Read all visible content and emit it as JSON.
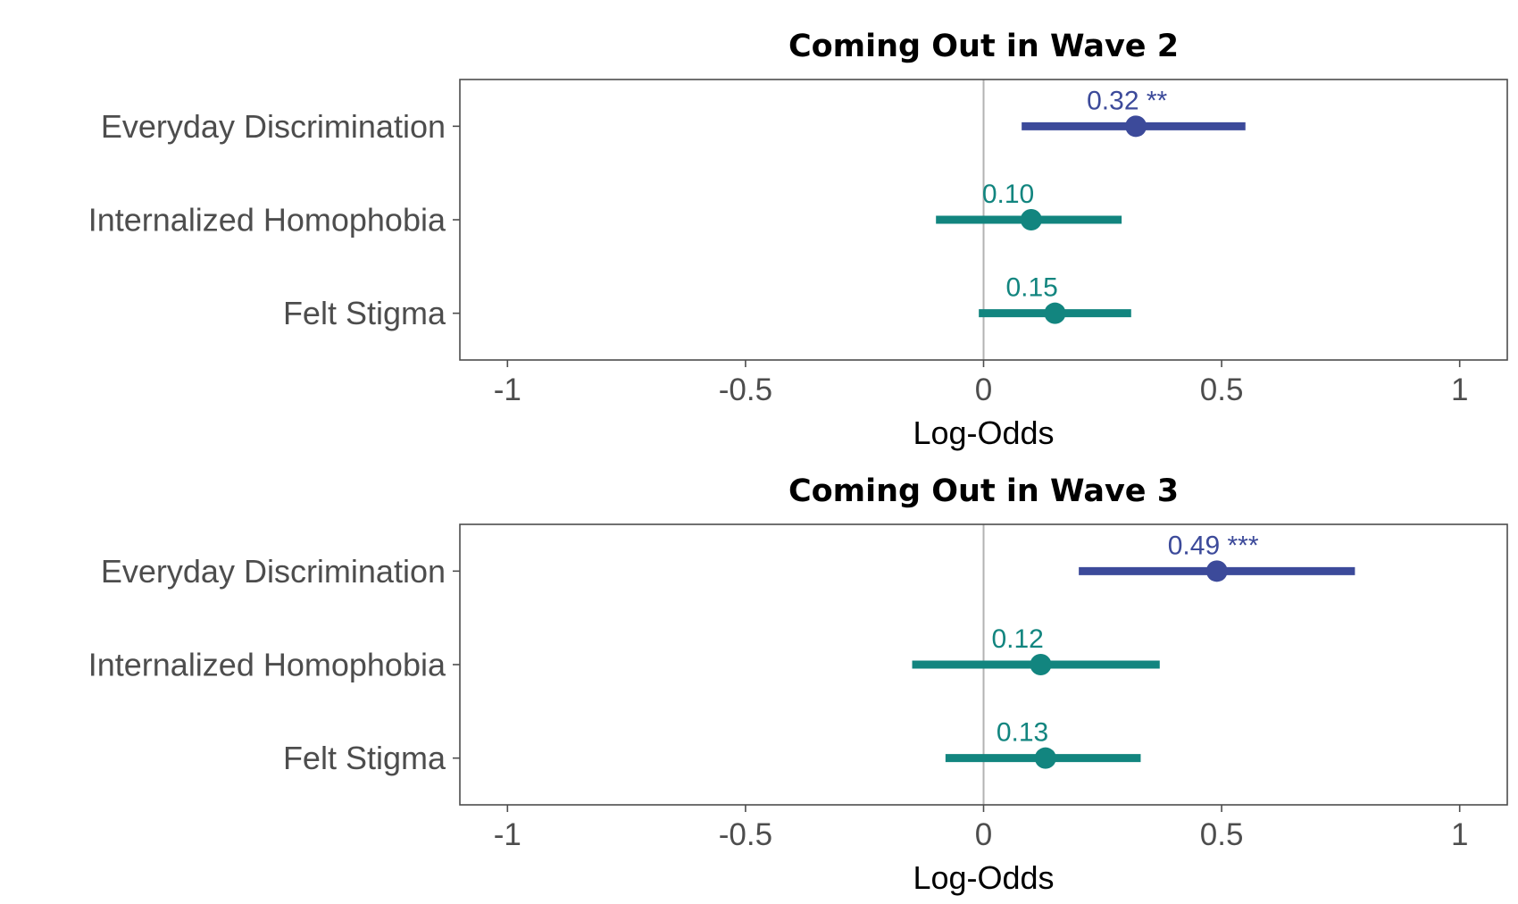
{
  "chart_data": [
    {
      "type": "scatter",
      "title": "Coming Out in Wave 2",
      "xlabel": "Log-Odds",
      "xlim": [
        -1.1,
        1.1
      ],
      "x_ticks": [
        -1,
        -0.5,
        0,
        0.5,
        1
      ],
      "x_tick_labels": [
        "-1",
        "-0.5",
        "0",
        "0.5",
        "1"
      ],
      "reference_line_x": 0,
      "grid": false,
      "categories": [
        "Everyday Discrimination",
        "Internalized Homophobia",
        "Felt Stigma"
      ],
      "estimates": [
        {
          "category": "Everyday Discrimination",
          "value": 0.32,
          "ci": [
            0.08,
            0.55
          ],
          "label": "0.32 **",
          "color": "#3c4a9a"
        },
        {
          "category": "Internalized Homophobia",
          "value": 0.1,
          "ci": [
            -0.1,
            0.29
          ],
          "label": "0.10",
          "color": "#12857f"
        },
        {
          "category": "Felt Stigma",
          "value": 0.15,
          "ci": [
            -0.01,
            0.31
          ],
          "label": "0.15",
          "color": "#12857f"
        }
      ]
    },
    {
      "type": "scatter",
      "title": "Coming Out in Wave 3",
      "xlabel": "Log-Odds",
      "xlim": [
        -1.1,
        1.1
      ],
      "x_ticks": [
        -1,
        -0.5,
        0,
        0.5,
        1
      ],
      "x_tick_labels": [
        "-1",
        "-0.5",
        "0",
        "0.5",
        "1"
      ],
      "reference_line_x": 0,
      "grid": false,
      "categories": [
        "Everyday Discrimination",
        "Internalized Homophobia",
        "Felt Stigma"
      ],
      "estimates": [
        {
          "category": "Everyday Discrimination",
          "value": 0.49,
          "ci": [
            0.2,
            0.78
          ],
          "label": "0.49 ***",
          "color": "#3c4a9a"
        },
        {
          "category": "Internalized Homophobia",
          "value": 0.12,
          "ci": [
            -0.15,
            0.37
          ],
          "label": "0.12",
          "color": "#12857f"
        },
        {
          "category": "Felt Stigma",
          "value": 0.13,
          "ci": [
            -0.08,
            0.33
          ],
          "label": "0.13",
          "color": "#12857f"
        }
      ]
    }
  ]
}
